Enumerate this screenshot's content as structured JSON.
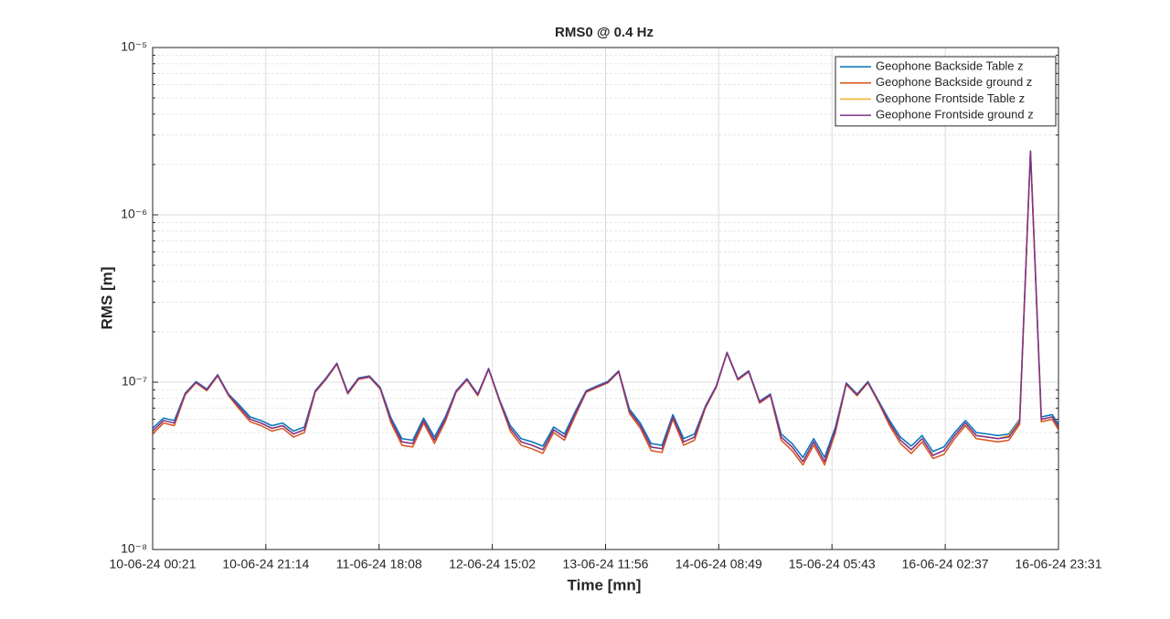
{
  "chart_data": {
    "type": "line",
    "title": "RMS0 @ 0.4 Hz",
    "xlabel": "Time [mn]",
    "ylabel": "RMS [m]",
    "x": [
      "10-06-24 00:21",
      "10-06-24 02:21",
      "10-06-24 04:21",
      "10-06-24 06:21",
      "10-06-24 08:21",
      "10-06-24 10:21",
      "10-06-24 12:21",
      "10-06-24 14:21",
      "10-06-24 16:21",
      "10-06-24 18:21",
      "10-06-24 20:21",
      "10-06-24 22:21",
      "11-06-24 00:21",
      "11-06-24 02:21",
      "11-06-24 04:21",
      "11-06-24 06:21",
      "11-06-24 08:21",
      "11-06-24 10:21",
      "11-06-24 12:21",
      "11-06-24 14:21",
      "11-06-24 16:21",
      "11-06-24 18:21",
      "11-06-24 20:21",
      "11-06-24 22:21",
      "12-06-24 00:21",
      "12-06-24 02:21",
      "12-06-24 04:21",
      "12-06-24 06:21",
      "12-06-24 08:21",
      "12-06-24 10:21",
      "12-06-24 12:21",
      "12-06-24 14:21",
      "12-06-24 16:21",
      "12-06-24 18:21",
      "12-06-24 20:21",
      "12-06-24 22:21",
      "13-06-24 00:21",
      "13-06-24 02:21",
      "13-06-24 04:21",
      "13-06-24 06:21",
      "13-06-24 08:21",
      "13-06-24 10:21",
      "13-06-24 12:21",
      "13-06-24 14:21",
      "13-06-24 16:21",
      "13-06-24 18:21",
      "13-06-24 20:21",
      "13-06-24 22:21",
      "14-06-24 00:21",
      "14-06-24 02:21",
      "14-06-24 04:21",
      "14-06-24 06:21",
      "14-06-24 08:21",
      "14-06-24 10:21",
      "14-06-24 12:21",
      "14-06-24 14:21",
      "14-06-24 16:21",
      "14-06-24 18:21",
      "14-06-24 20:21",
      "14-06-24 22:21",
      "15-06-24 00:21",
      "15-06-24 02:21",
      "15-06-24 04:21",
      "15-06-24 06:21",
      "15-06-24 08:21",
      "15-06-24 10:21",
      "15-06-24 12:21",
      "15-06-24 14:21",
      "15-06-24 16:21",
      "15-06-24 18:21",
      "15-06-24 20:21",
      "15-06-24 22:21",
      "16-06-24 00:21",
      "16-06-24 02:21",
      "16-06-24 04:21",
      "16-06-24 06:21",
      "16-06-24 08:21",
      "16-06-24 10:21",
      "16-06-24 12:21",
      "16-06-24 14:21",
      "16-06-24 16:21",
      "16-06-24 18:21",
      "16-06-24 20:21",
      "16-06-24 22:21",
      "16-06-24 23:31"
    ],
    "series": [
      {
        "name": "Geophone Backside Table z",
        "color": "#0072bd",
        "values": [
          5.3e-08,
          6.1e-08,
          5.9e-08,
          8.6e-08,
          1.01e-07,
          9.1e-08,
          1.11e-07,
          8.5e-08,
          7.3e-08,
          6.2e-08,
          5.9e-08,
          5.5e-08,
          5.7e-08,
          5.1e-08,
          5.4e-08,
          8.9e-08,
          1.06e-07,
          1.3e-07,
          8.7e-08,
          1.06e-07,
          1.09e-07,
          9.3e-08,
          6.1e-08,
          4.6e-08,
          4.5e-08,
          6.1e-08,
          4.7e-08,
          6.2e-08,
          8.9e-08,
          1.05e-07,
          8.5e-08,
          1.21e-07,
          7.9e-08,
          5.5e-08,
          4.6e-08,
          4.4e-08,
          4.15e-08,
          5.4e-08,
          4.9e-08,
          6.7e-08,
          8.9e-08,
          9.5e-08,
          1.01e-07,
          1.17e-07,
          6.9e-08,
          5.7e-08,
          4.3e-08,
          4.2e-08,
          6.4e-08,
          4.6e-08,
          4.9e-08,
          7.2e-08,
          9.5e-08,
          1.51e-07,
          1.05e-07,
          1.17e-07,
          7.7e-08,
          8.5e-08,
          4.9e-08,
          4.3e-08,
          3.55e-08,
          4.6e-08,
          3.55e-08,
          5.4e-08,
          9.9e-08,
          8.5e-08,
          1.01e-07,
          7.7e-08,
          5.9e-08,
          4.7e-08,
          4.15e-08,
          4.8e-08,
          3.85e-08,
          4.1e-08,
          5e-08,
          5.9e-08,
          5e-08,
          4.9e-08,
          4.8e-08,
          4.9e-08,
          6e-08,
          2.41e-06,
          6.2e-08,
          6.4e-08,
          5.6e-08
        ]
      },
      {
        "name": "Geophone Backside ground z",
        "color": "#d95319",
        "values": [
          4.9e-08,
          5.7e-08,
          5.5e-08,
          8.4e-08,
          9.9e-08,
          8.9e-08,
          1.09e-07,
          8.3e-08,
          6.9e-08,
          5.8e-08,
          5.5e-08,
          5.1e-08,
          5.3e-08,
          4.7e-08,
          5e-08,
          8.7e-08,
          1.04e-07,
          1.28e-07,
          8.5e-08,
          1.04e-07,
          1.07e-07,
          9.1e-08,
          5.7e-08,
          4.2e-08,
          4.1e-08,
          5.7e-08,
          4.3e-08,
          5.8e-08,
          8.7e-08,
          1.03e-07,
          8.3e-08,
          1.19e-07,
          7.7e-08,
          5.1e-08,
          4.2e-08,
          4e-08,
          3.75e-08,
          5e-08,
          4.5e-08,
          6.3e-08,
          8.7e-08,
          9.3e-08,
          9.9e-08,
          1.15e-07,
          6.5e-08,
          5.3e-08,
          3.9e-08,
          3.8e-08,
          6e-08,
          4.2e-08,
          4.5e-08,
          7e-08,
          9.3e-08,
          1.49e-07,
          1.03e-07,
          1.15e-07,
          7.5e-08,
          8.3e-08,
          4.5e-08,
          3.9e-08,
          3.2e-08,
          4.2e-08,
          3.2e-08,
          5e-08,
          9.7e-08,
          8.3e-08,
          9.9e-08,
          7.5e-08,
          5.5e-08,
          4.3e-08,
          3.75e-08,
          4.4e-08,
          3.5e-08,
          3.7e-08,
          4.6e-08,
          5.5e-08,
          4.6e-08,
          4.5e-08,
          4.4e-08,
          4.5e-08,
          5.6e-08,
          2.39e-06,
          5.8e-08,
          6e-08,
          5.2e-08
        ]
      },
      {
        "name": "Geophone Frontside Table z",
        "color": "#edb120",
        "values": [
          5.1e-08,
          5.9e-08,
          5.7e-08,
          8.5e-08,
          1e-07,
          9e-08,
          1.1e-07,
          8.4e-08,
          7.1e-08,
          6e-08,
          5.7e-08,
          5.3e-08,
          5.5e-08,
          4.9e-08,
          5.2e-08,
          8.8e-08,
          1.05e-07,
          1.29e-07,
          8.6e-08,
          1.05e-07,
          1.08e-07,
          9.2e-08,
          5.9e-08,
          4.4e-08,
          4.3e-08,
          5.9e-08,
          4.5e-08,
          6e-08,
          8.8e-08,
          1.04e-07,
          8.4e-08,
          1.2e-07,
          7.8e-08,
          5.3e-08,
          4.4e-08,
          4.2e-08,
          3.95e-08,
          5.2e-08,
          4.7e-08,
          6.5e-08,
          8.8e-08,
          9.4e-08,
          1e-07,
          1.16e-07,
          6.7e-08,
          5.5e-08,
          4.1e-08,
          4e-08,
          6.2e-08,
          4.4e-08,
          4.7e-08,
          7.1e-08,
          9.4e-08,
          1.5e-07,
          1.04e-07,
          1.16e-07,
          7.6e-08,
          8.4e-08,
          4.7e-08,
          4.1e-08,
          3.35e-08,
          4.4e-08,
          3.35e-08,
          5.2e-08,
          9.8e-08,
          8.4e-08,
          1e-07,
          7.6e-08,
          5.7e-08,
          4.5e-08,
          3.95e-08,
          4.6e-08,
          3.65e-08,
          3.9e-08,
          4.8e-08,
          5.7e-08,
          4.8e-08,
          4.7e-08,
          4.6e-08,
          4.8e-08,
          5.9e-08,
          2.4e-06,
          6e-08,
          6.2e-08,
          5.4e-08
        ]
      },
      {
        "name": "Geophone Frontside ground z",
        "color": "#7e2f8e",
        "values": [
          5.1e-08,
          5.9e-08,
          5.7e-08,
          8.5e-08,
          1e-07,
          9e-08,
          1.1e-07,
          8.4e-08,
          7.1e-08,
          6e-08,
          5.7e-08,
          5.3e-08,
          5.5e-08,
          4.9e-08,
          5.2e-08,
          8.8e-08,
          1.05e-07,
          1.29e-07,
          8.6e-08,
          1.05e-07,
          1.08e-07,
          9.2e-08,
          5.9e-08,
          4.4e-08,
          4.3e-08,
          5.9e-08,
          4.5e-08,
          6e-08,
          8.8e-08,
          1.04e-07,
          8.4e-08,
          1.2e-07,
          7.8e-08,
          5.3e-08,
          4.4e-08,
          4.2e-08,
          3.95e-08,
          5.2e-08,
          4.7e-08,
          6.5e-08,
          8.8e-08,
          9.4e-08,
          1e-07,
          1.16e-07,
          6.7e-08,
          5.5e-08,
          4.1e-08,
          4e-08,
          6.2e-08,
          4.4e-08,
          4.7e-08,
          7.1e-08,
          9.4e-08,
          1.5e-07,
          1.04e-07,
          1.16e-07,
          7.6e-08,
          8.4e-08,
          4.7e-08,
          4.1e-08,
          3.35e-08,
          4.4e-08,
          3.35e-08,
          5.2e-08,
          9.8e-08,
          8.4e-08,
          1e-07,
          7.6e-08,
          5.7e-08,
          4.5e-08,
          3.95e-08,
          4.6e-08,
          3.65e-08,
          3.9e-08,
          4.8e-08,
          5.7e-08,
          4.8e-08,
          4.7e-08,
          4.6e-08,
          4.7e-08,
          5.8e-08,
          2.4e-06,
          6e-08,
          6.2e-08,
          5.4e-08
        ]
      }
    ],
    "xlim": [
      "10-06-24 00:21",
      "16-06-24 23:31"
    ],
    "xticks": [
      "10-06-24 00:21",
      "10-06-24 21:14",
      "11-06-24 18:08",
      "12-06-24 15:02",
      "13-06-24 11:56",
      "14-06-24 08:49",
      "15-06-24 05:43",
      "16-06-24 02:37",
      "16-06-24 23:31"
    ],
    "ylim": [
      1e-08,
      1e-05
    ],
    "yticks": [
      {
        "value": 1e-08,
        "label": "10⁻⁸"
      },
      {
        "value": 1e-07,
        "label": "10⁻⁷"
      },
      {
        "value": 1e-06,
        "label": "10⁻⁶"
      },
      {
        "value": 1e-05,
        "label": "10⁻⁵"
      }
    ],
    "yscale": "log",
    "grid": true,
    "minor_grid": true,
    "legend": "upper right"
  }
}
